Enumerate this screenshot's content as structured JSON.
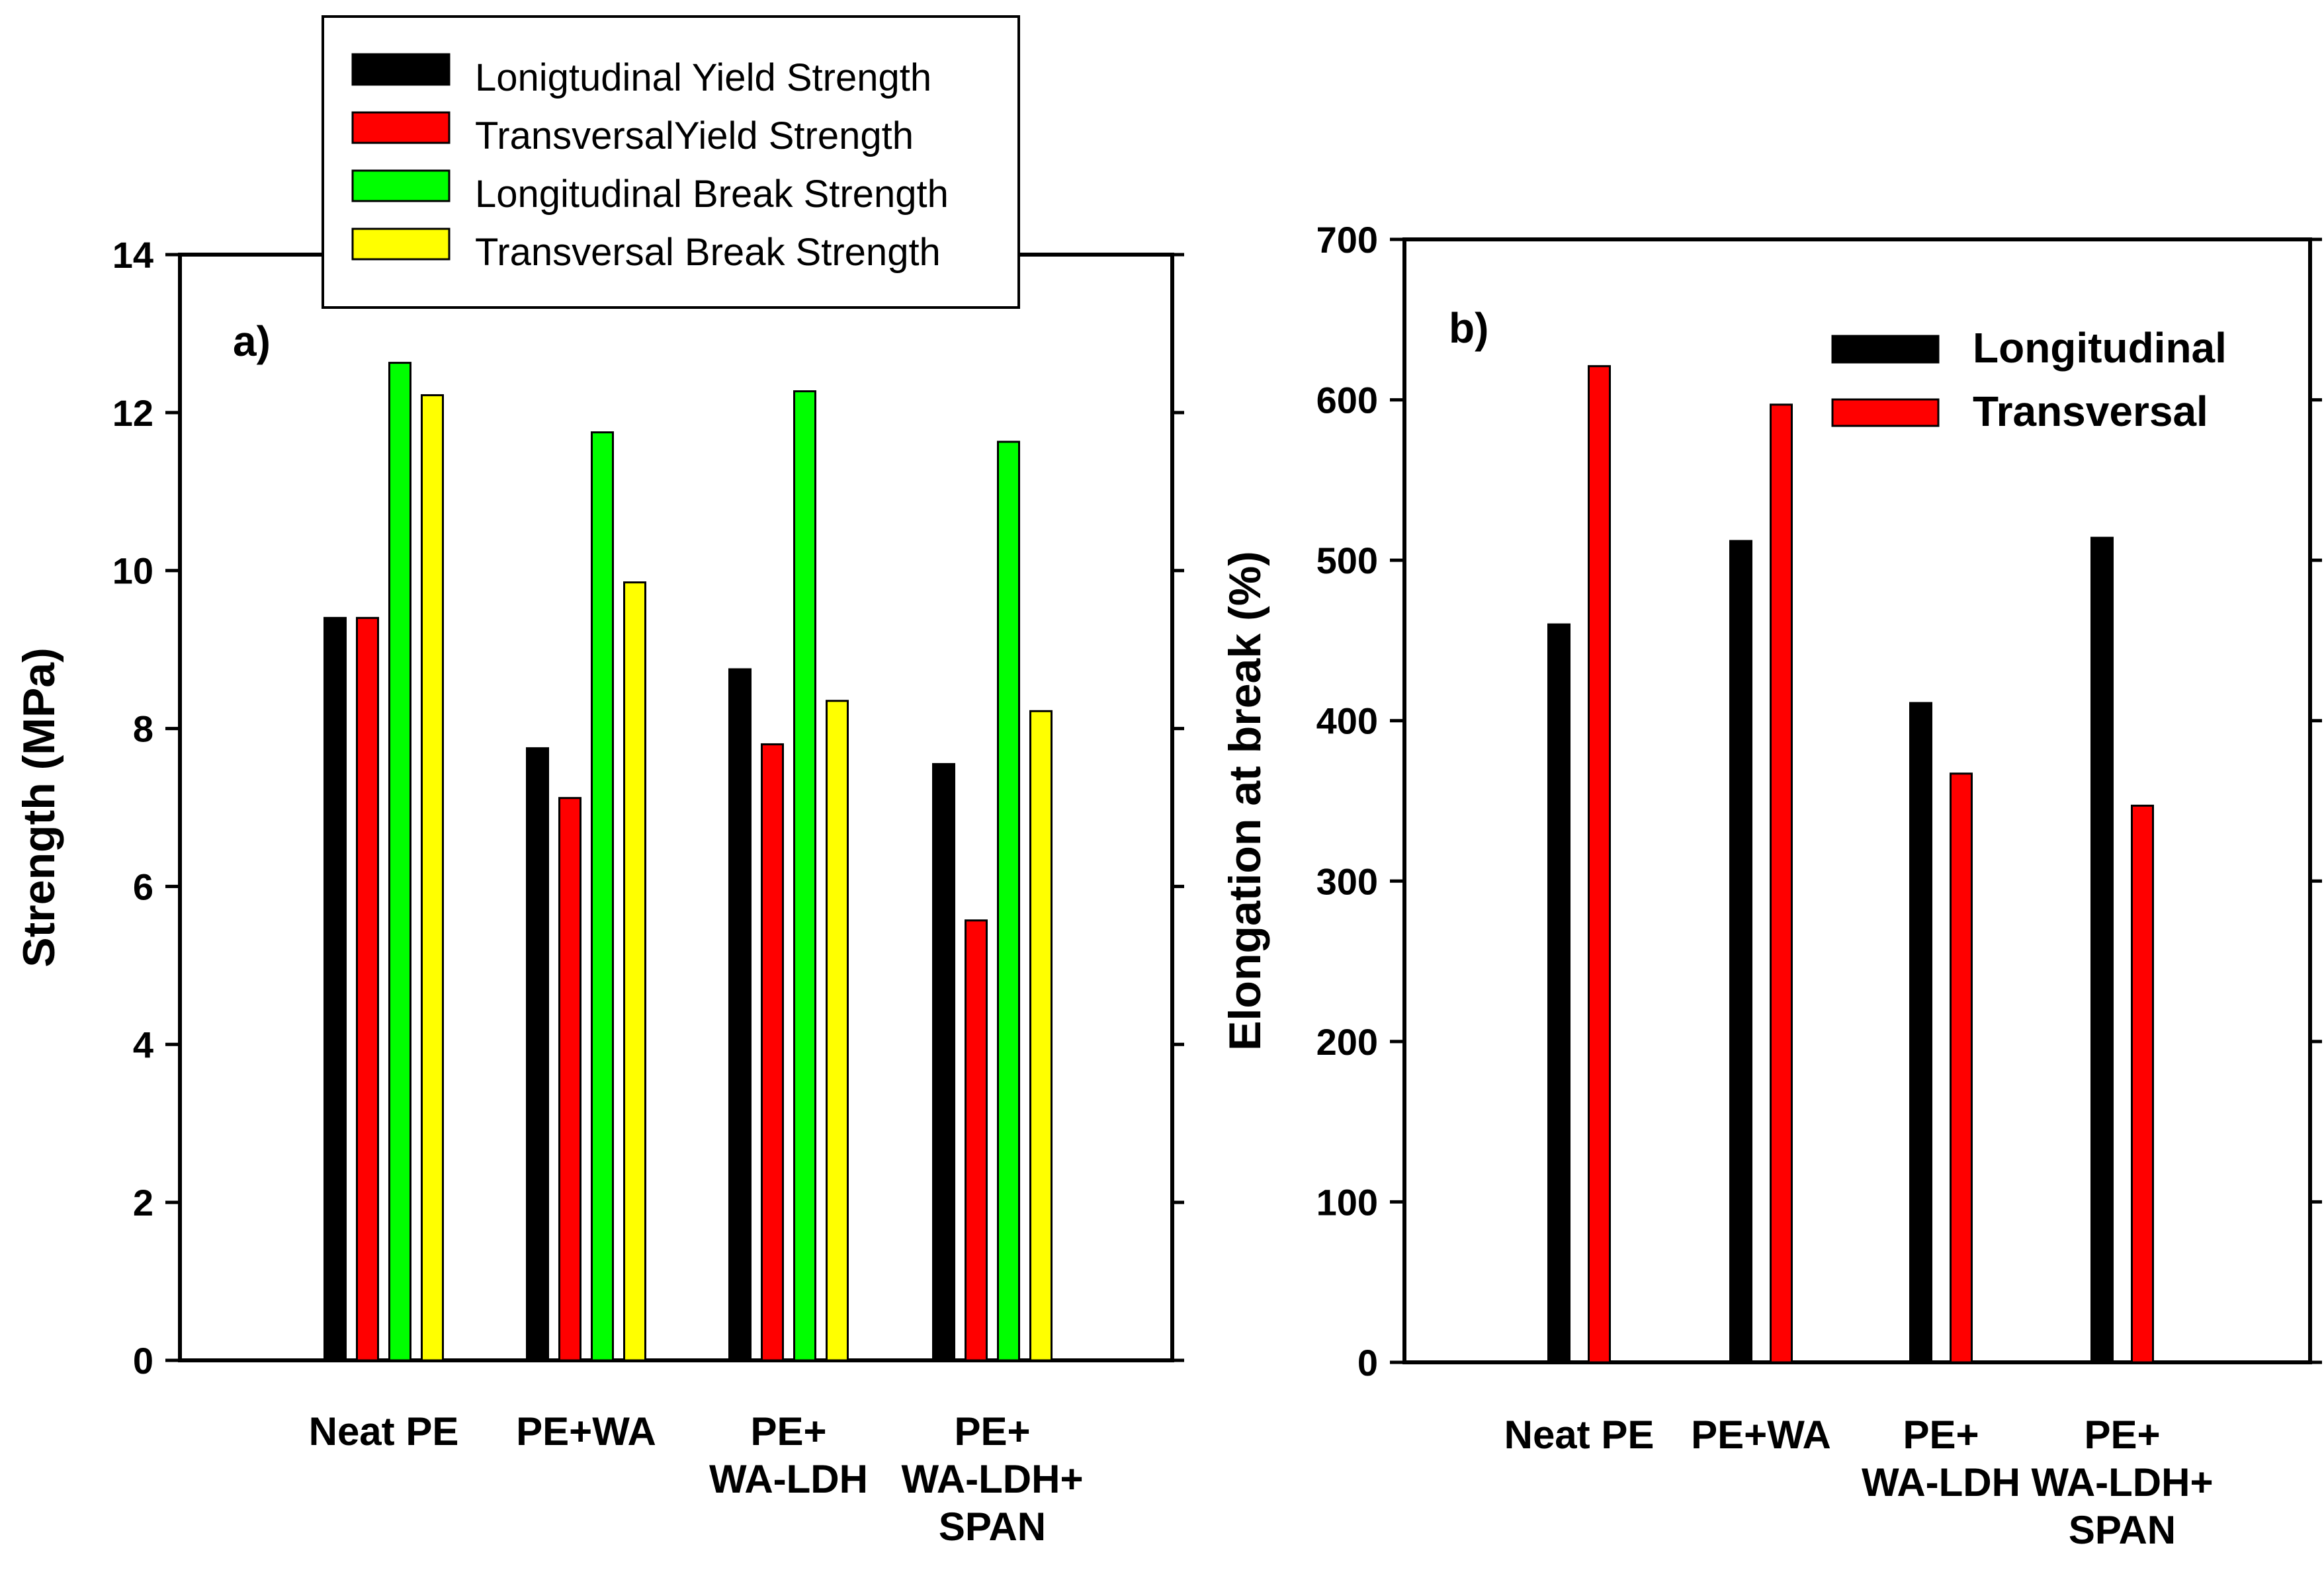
{
  "colors": {
    "black": "#000000",
    "red": "#ff0000",
    "green": "#00ff00",
    "yellow": "#ffff00"
  },
  "chart_data": [
    {
      "type": "bar",
      "panel_label": "a)",
      "title": "",
      "xlabel": "",
      "ylabel": "Strength (MPa)",
      "ylim": [
        0,
        14
      ],
      "yticks": [
        "0",
        "2",
        "4",
        "6",
        "8",
        "10",
        "12",
        "14"
      ],
      "categories": [
        [
          "Neat PE"
        ],
        [
          "PE+WA"
        ],
        [
          "PE+",
          "WA-LDH"
        ],
        [
          "PE+",
          "WA-LDH+",
          "SPAN"
        ]
      ],
      "legend_position": "top-center, above plot",
      "series": [
        {
          "name": "Lonigtudinal Yield Strength",
          "color": "#000000",
          "values": [
            9.4,
            7.75,
            8.75,
            7.55
          ]
        },
        {
          "name": "TransversalYield Strength",
          "color": "#ff0000",
          "values": [
            9.4,
            7.12,
            7.8,
            5.57
          ]
        },
        {
          "name": "Longitudinal Break Strength",
          "color": "#00ff00",
          "values": [
            12.63,
            11.75,
            12.27,
            11.63
          ]
        },
        {
          "name": "Transversal Break Strength",
          "color": "#ffff00",
          "values": [
            12.22,
            9.85,
            8.35,
            8.22
          ]
        }
      ]
    },
    {
      "type": "bar",
      "panel_label": "b)",
      "title": "",
      "xlabel": "",
      "ylabel": "Elongation at break (%)",
      "ylim": [
        0,
        700
      ],
      "yticks": [
        "0",
        "100",
        "200",
        "300",
        "400",
        "500",
        "600",
        "700"
      ],
      "categories": [
        [
          "Neat PE"
        ],
        [
          "PE+WA"
        ],
        [
          "PE+",
          "WA-LDH"
        ],
        [
          "PE+",
          "WA-LDH+",
          "SPAN"
        ]
      ],
      "legend_position": "top-right, inside plot",
      "series": [
        {
          "name": "Longitudinal",
          "color": "#000000",
          "values": [
            460,
            512,
            411,
            514
          ]
        },
        {
          "name": "Transversal",
          "color": "#ff0000",
          "values": [
            621,
            597,
            367,
            347
          ]
        }
      ]
    }
  ]
}
